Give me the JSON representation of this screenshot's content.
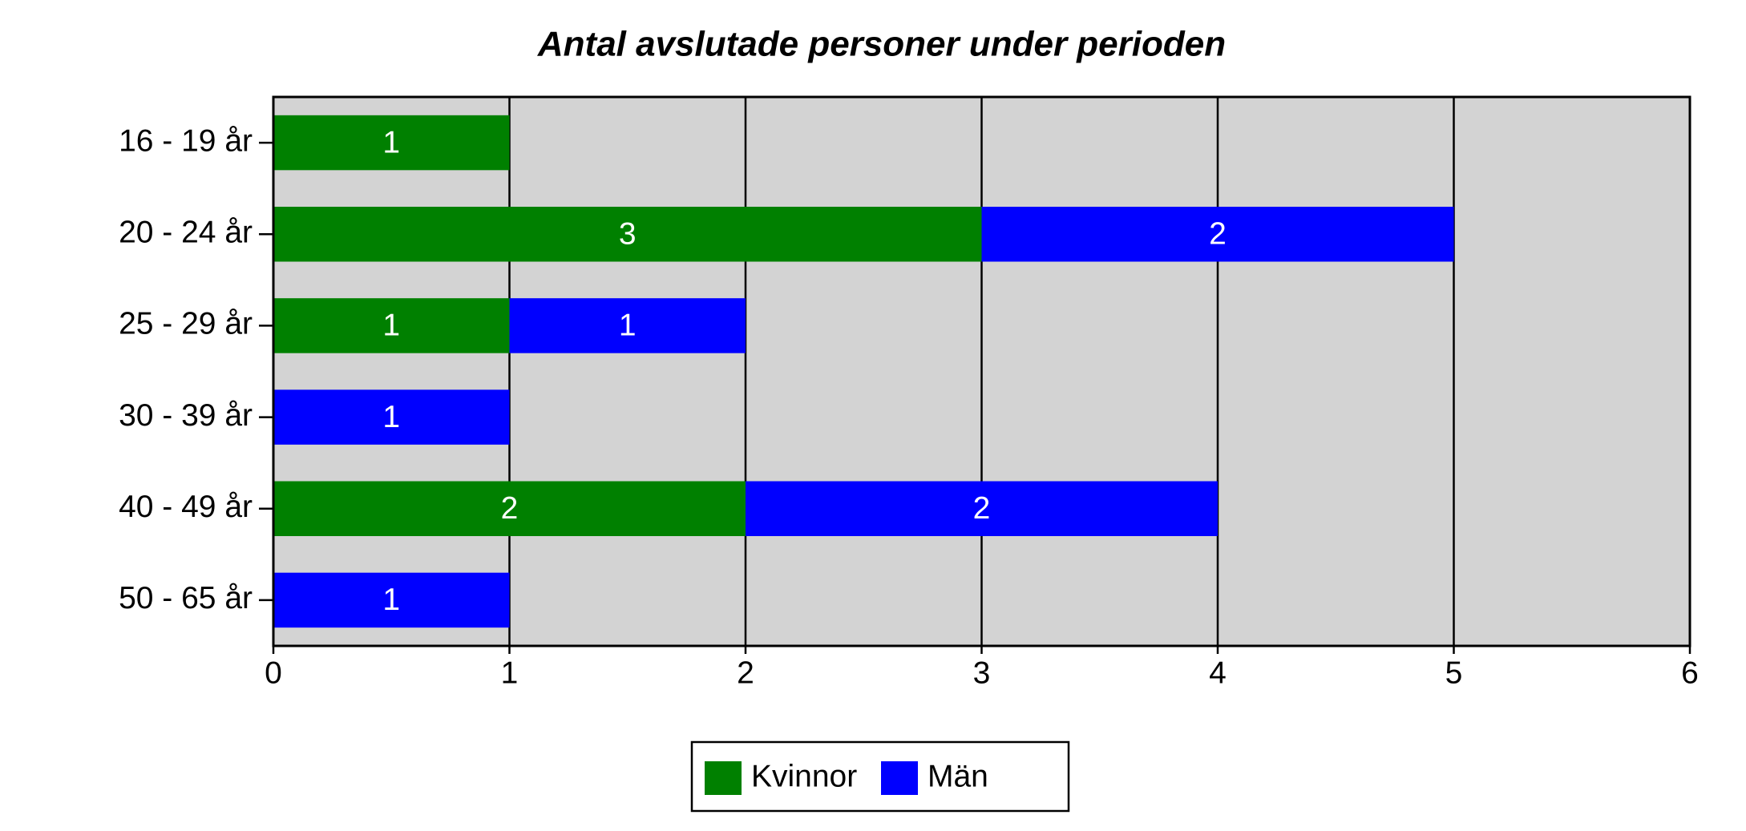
{
  "chart_data": {
    "type": "stacked-bar-horizontal",
    "title": "Antal avslutade personer under perioden",
    "categories": [
      "16 - 19 år",
      "20 - 24 år",
      "25 - 29 år",
      "30 - 39 år",
      "40 - 49 år",
      "50 - 65 år"
    ],
    "series": [
      {
        "name": "Kvinnor",
        "color": "#008000",
        "values": [
          1,
          3,
          1,
          null,
          2,
          null
        ]
      },
      {
        "name": "Män",
        "color": "#0000ff",
        "values": [
          null,
          2,
          1,
          1,
          2,
          1
        ]
      }
    ],
    "xlim": [
      0,
      6
    ],
    "xticks": [
      0,
      1,
      2,
      3,
      4,
      5,
      6
    ],
    "grid": true,
    "plot_background": "#d3d3d3"
  }
}
